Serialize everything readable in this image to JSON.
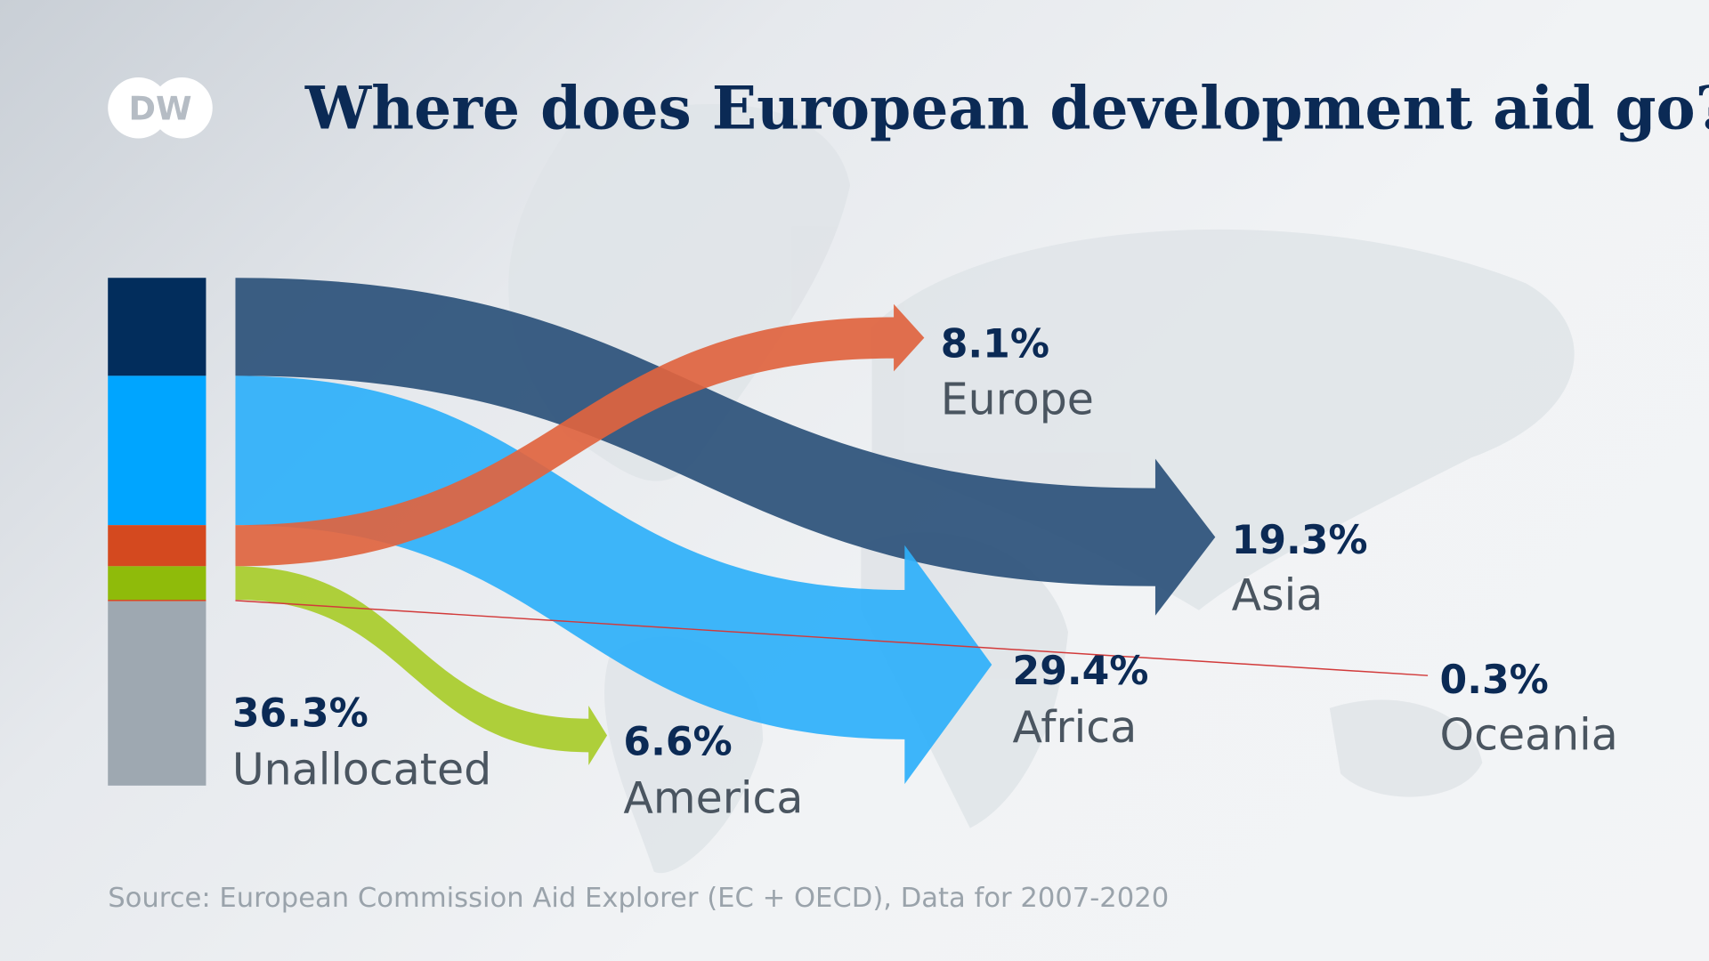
{
  "logo_text": "DW",
  "chart_data": {
    "type": "sankey",
    "title": "Where does European development aid go?",
    "source": "Source: European Commission Aid Explorer (EC + OECD), Data for 2007-2020",
    "categories": [
      "Asia",
      "Africa",
      "Europe",
      "America",
      "Oceania",
      "Unallocated"
    ],
    "values": [
      19.3,
      29.4,
      8.1,
      6.6,
      0.3,
      36.3
    ],
    "labels": [
      "19.3%",
      "29.4%",
      "8.1%",
      "6.6%",
      "0.3%",
      "36.3%"
    ],
    "colors": [
      "#022d5c",
      "#00a5ff",
      "#d4491f",
      "#8fbb0a",
      "#d4491f",
      "#9ea8b1"
    ],
    "flow_colors": [
      "#2b5179",
      "#2eb0fa",
      "#e0643f",
      "#a8cc2a",
      "#d23a3a",
      null
    ]
  }
}
